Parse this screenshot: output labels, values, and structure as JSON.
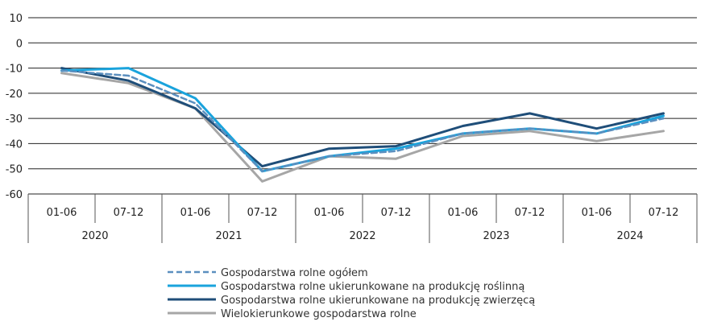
{
  "chart_data": {
    "type": "line",
    "title": "",
    "xlabel": "",
    "ylabel": "",
    "ylim": [
      -60,
      10
    ],
    "y_ticks": [
      10,
      0,
      -10,
      -20,
      -30,
      -40,
      -50,
      -60
    ],
    "y_tick_labels": [
      "10",
      "0",
      "-10",
      "-20",
      "-30",
      "-40",
      "-50",
      "-60"
    ],
    "grid": true,
    "legend_position": "bottom",
    "categories": [
      "01-06",
      "07-12",
      "01-06",
      "07-12",
      "01-06",
      "07-12",
      "01-06",
      "07-12",
      "01-06",
      "07-12"
    ],
    "years": [
      "2020",
      "2021",
      "2022",
      "2023",
      "2024"
    ],
    "series": [
      {
        "name": "Gospodarstwa rolne ogółem",
        "color": "#5b8fbf",
        "dash": true,
        "values": [
          -11,
          -13,
          -24,
          -51,
          -45,
          -43,
          -36,
          -34,
          -36,
          -30
        ]
      },
      {
        "name": "Gospodarstwa rolne ukierunkowane na produkcję roślinną",
        "color": "#1aa3dc",
        "dash": false,
        "values": [
          -11,
          -10,
          -22,
          -51,
          -45,
          -42,
          -36,
          -34,
          -36,
          -29
        ]
      },
      {
        "name": "Gospodarstwa rolne ukierunkowane na produkcję zwierzęcą",
        "color": "#1f4e79",
        "dash": false,
        "values": [
          -10,
          -15,
          -26,
          -49,
          -42,
          -41,
          -33,
          -28,
          -34,
          -28
        ]
      },
      {
        "name": "Wielokierunkowe gospodarstwa rolne",
        "color": "#a6a6a6",
        "dash": false,
        "values": [
          -12,
          -16,
          -26,
          -55,
          -45,
          -46,
          -37,
          -35,
          -39,
          -35
        ]
      }
    ]
  }
}
